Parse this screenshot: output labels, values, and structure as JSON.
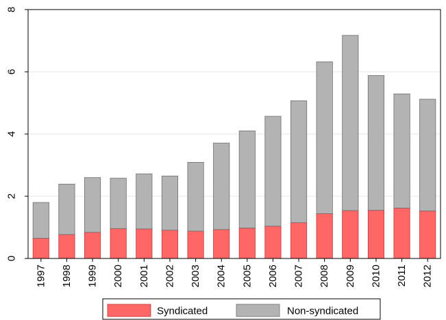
{
  "chart_data": {
    "type": "bar",
    "stacked": true,
    "title": "",
    "xlabel": "",
    "ylabel": "",
    "categories": [
      "1997",
      "1998",
      "1999",
      "2000",
      "2001",
      "2002",
      "2003",
      "2004",
      "2005",
      "2006",
      "2007",
      "2008",
      "2009",
      "2010",
      "2011",
      "2012"
    ],
    "series": [
      {
        "name": "Syndicated",
        "color": "#ff6666",
        "values": [
          0.65,
          0.77,
          0.84,
          0.96,
          0.95,
          0.91,
          0.88,
          0.93,
          0.98,
          1.04,
          1.15,
          1.44,
          1.54,
          1.55,
          1.62,
          1.53
        ]
      },
      {
        "name": "Non-syndicated",
        "color": "#b3b3b3",
        "values": [
          1.15,
          1.62,
          1.76,
          1.62,
          1.77,
          1.74,
          2.21,
          2.78,
          3.12,
          3.53,
          3.92,
          4.88,
          5.63,
          4.33,
          3.67,
          3.59
        ]
      }
    ],
    "ylim": [
      0,
      8
    ],
    "yticks": [
      0,
      2,
      4,
      6,
      8
    ],
    "grid": true,
    "legend_position": "bottom"
  }
}
